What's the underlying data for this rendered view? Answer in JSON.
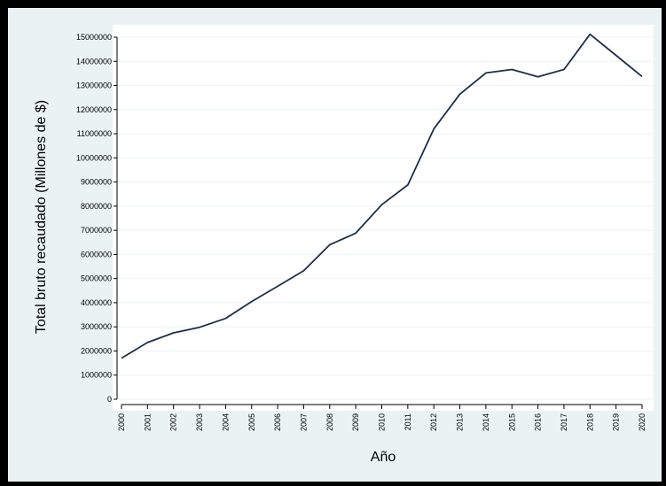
{
  "chart_data": {
    "type": "line",
    "xlabel": "Año",
    "ylabel": "Total bruto recaudado (Millones de $)",
    "x": [
      "2000",
      "2001",
      "2002",
      "2003",
      "2004",
      "2005",
      "2006",
      "2007",
      "2008",
      "2009",
      "2010",
      "2011",
      "2012",
      "2013",
      "2014",
      "2015",
      "2016",
      "2017",
      "2018",
      "2019",
      "2020"
    ],
    "series": [
      {
        "values": [
          1700000,
          2350000,
          2750000,
          2980000,
          3350000,
          4050000,
          4680000,
          5320000,
          6400000,
          6880000,
          8060000,
          8880000,
          11200000,
          12640000,
          13520000,
          13660000,
          13360000,
          13660000,
          15120000,
          14250000,
          13370000
        ]
      }
    ],
    "yticks": [
      0,
      1000000,
      2000000,
      3000000,
      4000000,
      5000000,
      6000000,
      7000000,
      8000000,
      9000000,
      10000000,
      11000000,
      12000000,
      13000000,
      14000000,
      15000000
    ],
    "ylim": [
      0,
      15000000
    ],
    "grid": true,
    "colors": {
      "line": "#1c2e4a",
      "plot_bg": "#ffffff",
      "frame_bg": "#eaf2f3",
      "grid": "#eaf2f3",
      "border": "#000000"
    }
  }
}
